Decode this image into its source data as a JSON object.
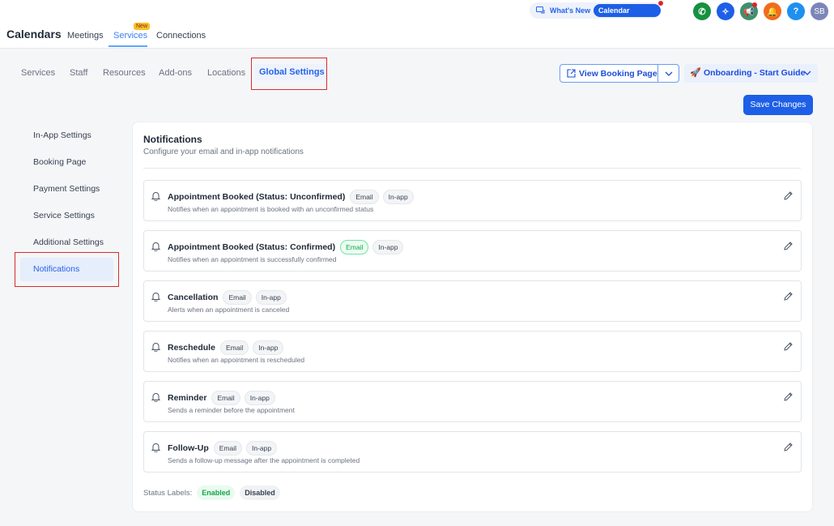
{
  "header": {
    "brand": "Calendars",
    "nav": [
      {
        "label": "Meetings"
      },
      {
        "label": "Services",
        "badge": "New",
        "active": true
      },
      {
        "label": "Connections"
      }
    ],
    "whats_new": "What's New",
    "calendar_updates": "Calendar Updates",
    "avatar": "SB",
    "help": "?"
  },
  "subtabs": [
    {
      "label": "Services"
    },
    {
      "label": "Staff"
    },
    {
      "label": "Resources"
    },
    {
      "label": "Add-ons"
    },
    {
      "label": "Locations"
    },
    {
      "label": "Global Settings",
      "active": true
    }
  ],
  "actions": {
    "view_booking": "View Booking Page",
    "onboarding": "Onboarding - Start Guide",
    "save": "Save Changes"
  },
  "sidebar": {
    "items": [
      {
        "label": "In-App Settings"
      },
      {
        "label": "Booking Page"
      },
      {
        "label": "Payment Settings"
      },
      {
        "label": "Service Settings"
      },
      {
        "label": "Additional Settings"
      },
      {
        "label": "Notifications",
        "active": true
      }
    ]
  },
  "panel": {
    "title": "Notifications",
    "subtitle": "Configure your email and in-app notifications",
    "items": [
      {
        "title": "Appointment Booked (Status: Unconfirmed)",
        "email": "Email",
        "inapp": "In-app",
        "email_enabled": false,
        "desc": "Notifies when an appointment is booked with an unconfirmed status"
      },
      {
        "title": "Appointment Booked (Status: Confirmed)",
        "email": "Email",
        "inapp": "In-app",
        "email_enabled": true,
        "desc": "Notifies when an appointment is successfully confirmed"
      },
      {
        "title": "Cancellation",
        "email": "Email",
        "inapp": "In-app",
        "email_enabled": false,
        "desc": "Alerts when an appointment is canceled"
      },
      {
        "title": "Reschedule",
        "email": "Email",
        "inapp": "In-app",
        "email_enabled": false,
        "desc": "Notifies when an appointment is rescheduled"
      },
      {
        "title": "Reminder",
        "email": "Email",
        "inapp": "In-app",
        "email_enabled": false,
        "desc": "Sends a reminder before the appointment"
      },
      {
        "title": "Follow-Up",
        "email": "Email",
        "inapp": "In-app",
        "email_enabled": false,
        "desc": "Sends a follow-up message after the appointment is completed"
      }
    ],
    "legend": {
      "label": "Status Labels:",
      "enabled": "Enabled",
      "disabled": "Disabled"
    }
  },
  "colors": {
    "accent": "#1d5fe6",
    "enabled": "#16a34a",
    "highlight": "#d32f2f"
  }
}
